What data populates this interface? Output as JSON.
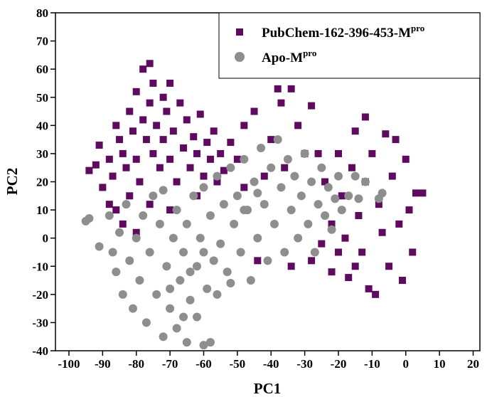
{
  "chart_data": {
    "type": "scatter",
    "xlabel": "PC1",
    "ylabel": "PC2",
    "xlim": [
      -104,
      22
    ],
    "ylim": [
      -40,
      80
    ],
    "xticks": [
      -100,
      -90,
      -80,
      -70,
      -60,
      -50,
      -40,
      -30,
      -20,
      -10,
      0,
      10,
      20
    ],
    "yticks": [
      -40,
      -30,
      -20,
      -10,
      0,
      10,
      20,
      30,
      40,
      50,
      60,
      70,
      80
    ],
    "legend": "upper right",
    "series": [
      {
        "name": "PubChem-162-396-453-M",
        "name_superscript": "pro",
        "color": "#5e0a5e",
        "marker": "square",
        "x": [
          -94,
          -92,
          -90,
          -91,
          -88,
          -87,
          -86,
          -85,
          -84,
          -83,
          -82,
          -82,
          -81,
          -80,
          -80,
          -79,
          -78,
          -78,
          -77,
          -76,
          -76,
          -75,
          -75,
          -74,
          -73,
          -72,
          -72,
          -71,
          -70,
          -70,
          -69,
          -68,
          -67,
          -66,
          -65,
          -64,
          -63,
          -62,
          -61,
          -60,
          -59,
          -58,
          -57,
          -56,
          -55,
          -54,
          -52,
          -50,
          -48,
          -86,
          -84,
          -80,
          -88,
          -76,
          -70,
          -62,
          -48,
          -45,
          -44,
          -42,
          -40,
          -38,
          -37,
          -36,
          -34,
          -34,
          -32,
          -30,
          -28,
          -28,
          -26,
          -24,
          -22,
          -20,
          -19,
          -18,
          -17,
          -16,
          -15,
          -14,
          -13,
          -12,
          -12,
          -11,
          -10,
          -9,
          -8,
          -7,
          -6,
          -5,
          -4,
          -3,
          -2,
          -1,
          0,
          1,
          2,
          3,
          5,
          -22,
          -20,
          -15,
          -25
        ],
        "values": [
          24,
          26,
          18,
          33,
          28,
          22,
          40,
          35,
          30,
          25,
          45,
          15,
          38,
          52,
          28,
          20,
          60,
          42,
          35,
          62,
          48,
          55,
          30,
          40,
          25,
          50,
          35,
          45,
          28,
          55,
          38,
          20,
          48,
          32,
          42,
          25,
          36,
          30,
          44,
          22,
          34,
          28,
          38,
          20,
          30,
          24,
          34,
          28,
          18,
          10,
          5,
          2,
          12,
          12,
          10,
          15,
          40,
          45,
          -8,
          22,
          35,
          53,
          48,
          25,
          53,
          -10,
          40,
          30,
          47,
          -8,
          30,
          20,
          -12,
          30,
          15,
          0,
          -14,
          25,
          38,
          8,
          -5,
          43,
          20,
          -18,
          30,
          -20,
          12,
          2,
          37,
          -10,
          22,
          35,
          5,
          -15,
          28,
          10,
          -5,
          16,
          16,
          5,
          -5,
          -10,
          -2
        ]
      },
      {
        "name": "Apo-M",
        "name_superscript": "pro",
        "color": "#8e8e8e",
        "marker": "circle",
        "x": [
          -95,
          -94,
          -91,
          -88,
          -87,
          -86,
          -85,
          -84,
          -83,
          -82,
          -81,
          -80,
          -79,
          -78,
          -77,
          -76,
          -75,
          -74,
          -73,
          -72,
          -72,
          -71,
          -70,
          -69,
          -68,
          -68,
          -67,
          -66,
          -65,
          -65,
          -64,
          -63,
          -62,
          -62,
          -61,
          -60,
          -60,
          -59,
          -58,
          -57,
          -56,
          -55,
          -54,
          -53,
          -52,
          -51,
          -50,
          -49,
          -48,
          -47,
          -46,
          -45,
          -44,
          -43,
          -42,
          -41,
          -40,
          -39,
          -38,
          -37,
          -36,
          -35,
          -34,
          -33,
          -32,
          -31,
          -30,
          -29,
          -28,
          -27,
          -26,
          -25,
          -24,
          -23,
          -22,
          -21,
          -20,
          -19,
          -17,
          -15,
          -14,
          -12,
          -8,
          -7,
          -58,
          -66,
          -70,
          -64,
          -60,
          -56,
          -52,
          -48,
          -44
        ],
        "values": [
          6,
          7,
          -3,
          8,
          -5,
          -12,
          2,
          -20,
          12,
          -8,
          -25,
          0,
          -15,
          8,
          -30,
          -5,
          15,
          -20,
          5,
          -35,
          17,
          -10,
          -25,
          0,
          -32,
          10,
          -15,
          -5,
          -37,
          5,
          -22,
          15,
          -28,
          -10,
          0,
          -38,
          18,
          -18,
          8,
          -8,
          22,
          -2,
          12,
          -12,
          25,
          5,
          15,
          -5,
          28,
          10,
          -15,
          20,
          0,
          32,
          12,
          -8,
          25,
          5,
          35,
          18,
          -5,
          28,
          10,
          22,
          0,
          15,
          30,
          5,
          20,
          -5,
          12,
          25,
          8,
          18,
          3,
          14,
          22,
          10,
          15,
          22,
          14,
          20,
          14,
          16,
          -37,
          -28,
          -18,
          -12,
          -5,
          -20,
          -16,
          10,
          16
        ]
      }
    ]
  }
}
